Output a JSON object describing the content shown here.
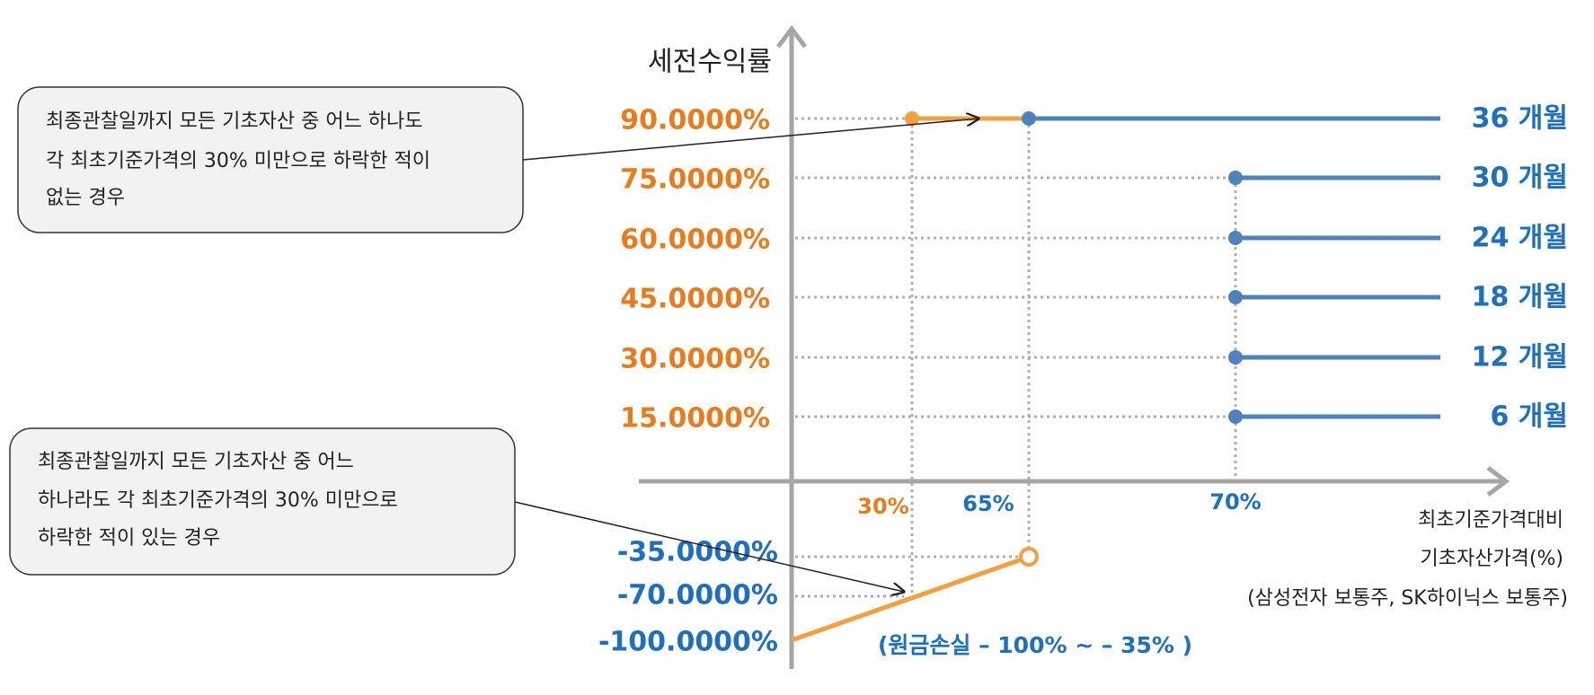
{
  "axis_title": "세전수익률",
  "levels": [
    {
      "return": "90.0000%",
      "period": "36 개월"
    },
    {
      "return": "75.0000%",
      "period": "30 개월"
    },
    {
      "return": "60.0000%",
      "period": "24 개월"
    },
    {
      "return": "45.0000%",
      "period": "18 개월"
    },
    {
      "return": "30.0000%",
      "period": "12 개월"
    },
    {
      "return": "15.0000%",
      "period": "6 개월"
    }
  ],
  "loss_levels": [
    "-35.0000%",
    "-70.0000%",
    "-100.0000%"
  ],
  "barriers": [
    "30%",
    "65%",
    "70%"
  ],
  "x_axis_caption": [
    "최초기준가격대비",
    "기초자산가격(%)",
    "(삼성전자 보통주, SK하이닉스 보통주)"
  ],
  "loss_note": "(원금손실 – 100% ~ – 35% )",
  "callouts": [
    {
      "lines": [
        "최종관찰일까지 모든 기초자산 중 어느 하나도",
        "각 최초기준가격의 30% 미만으로 하락한 적이",
        "없는 경우"
      ]
    },
    {
      "lines": [
        "최종관찰일까지 모든 기초자산 중 어느",
        "하나라도 각 최초기준가격의 30% 미만으로",
        "하락한 적이 있는 경우"
      ]
    }
  ]
}
